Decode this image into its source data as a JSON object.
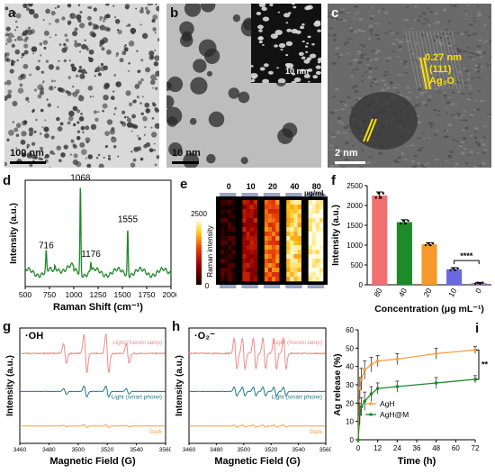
{
  "panels": {
    "a": {
      "label": "a",
      "scale": "100 nm"
    },
    "b": {
      "label": "b",
      "scale": "10 nm",
      "inset_scale": "10 nm"
    },
    "c": {
      "label": "c",
      "scale": "2 nm",
      "annotation_line1": "0.27 nm",
      "annotation_line2": "(111)",
      "annotation_line3": "Ag₂O"
    },
    "d": {
      "label": "d"
    },
    "e": {
      "label": "e"
    },
    "f": {
      "label": "f"
    },
    "g": {
      "label": "g"
    },
    "h": {
      "label": "h"
    },
    "i": {
      "label": "i"
    }
  },
  "colors": {
    "green": "#1f8a2a",
    "pink": "#f08a8a",
    "teal": "#1a7a8a",
    "orange": "#f0a040",
    "bar_pink": "#f07070",
    "bar_green": "#1f8a2a",
    "bar_orange": "#f59a2a",
    "bar_blue": "#6a6ae0",
    "bar_purple": "#9a6ad0",
    "yellow": "#ffe000"
  },
  "chart_data": [
    {
      "id": "d",
      "type": "line",
      "xlabel": "Raman Shift (cm⁻¹)",
      "ylabel": "Intensity (a.u.)",
      "xlim": [
        500,
        2000
      ],
      "xticks": [
        500,
        750,
        1000,
        1250,
        1500,
        1750,
        2000
      ],
      "annotations": [
        {
          "x": 716,
          "text": "716"
        },
        {
          "x": 1068,
          "text": "1068"
        },
        {
          "x": 1176,
          "text": "1176"
        },
        {
          "x": 1555,
          "text": "1555"
        }
      ],
      "series": [
        {
          "peaks": [
            {
              "x": 716,
              "h": 0.22
            },
            {
              "x": 1068,
              "h": 1.0
            },
            {
              "x": 1176,
              "h": 0.12
            },
            {
              "x": 1555,
              "h": 0.52
            }
          ]
        }
      ]
    },
    {
      "id": "e",
      "type": "heatmap",
      "ylabel": "Raman intensity",
      "colorbar": [
        0,
        2500
      ],
      "colorbar_labels": [
        "2500",
        "0"
      ],
      "columns": [
        "0",
        "10",
        "20",
        "40",
        "80"
      ],
      "unit": "μg/mL",
      "levels": [
        0.05,
        0.35,
        0.6,
        0.85,
        0.98
      ]
    },
    {
      "id": "f",
      "type": "bar",
      "xlabel": "Concentration (μg mL⁻¹)",
      "ylabel": "Intensity (a.u.)",
      "categories": [
        "80",
        "40",
        "20",
        "10",
        "0"
      ],
      "values": [
        2250,
        1580,
        1020,
        390,
        40
      ],
      "errors": [
        90,
        60,
        40,
        40,
        20
      ],
      "ylim": [
        0,
        2500
      ],
      "yticks": [
        0,
        500,
        1000,
        1500,
        2000,
        2500
      ],
      "significance": "****"
    },
    {
      "id": "g",
      "type": "line",
      "title": "·OH",
      "xlabel": "Magnetic Field (G)",
      "ylabel": "Intensity (a.u.)",
      "xlim": [
        3460,
        3560
      ],
      "xticks": [
        3460,
        3480,
        3500,
        3520,
        3540,
        3560
      ],
      "series": [
        {
          "name": "Light (Xenon lamp)",
          "offset": 0.78,
          "amp": 0.28
        },
        {
          "name": "Light (smart phone)",
          "offset": 0.45,
          "amp": 0.08
        },
        {
          "name": "Dark",
          "offset": 0.15,
          "amp": 0.02
        }
      ]
    },
    {
      "id": "h",
      "type": "line",
      "title": "·O₂⁻",
      "xlabel": "Magnetic Field (G)",
      "ylabel": "Intensity (a.u.)",
      "xlim": [
        3460,
        3560
      ],
      "xticks": [
        3460,
        3480,
        3500,
        3520,
        3540,
        3560
      ],
      "series": [
        {
          "name": "Light (Xenon lamp)",
          "offset": 0.78,
          "amp": 0.28
        },
        {
          "name": "Light (smart phone)",
          "offset": 0.45,
          "amp": 0.08
        },
        {
          "name": "Dark",
          "offset": 0.15,
          "amp": 0.02
        }
      ]
    },
    {
      "id": "i",
      "type": "line",
      "xlabel": "Time (h)",
      "ylabel": "Ag release (%)",
      "xlim": [
        0,
        72
      ],
      "ylim": [
        0,
        60
      ],
      "xticks": [
        0,
        12,
        24,
        36,
        48,
        60,
        72
      ],
      "yticks": [
        0,
        10,
        20,
        30,
        40,
        50,
        60
      ],
      "significance": "**",
      "series": [
        {
          "name": "AgH",
          "x": [
            0,
            1,
            2,
            4,
            8,
            12,
            24,
            48,
            72
          ],
          "y": [
            0,
            28,
            33,
            38,
            41,
            43,
            44,
            47,
            49
          ],
          "err": [
            0,
            6,
            6,
            5,
            4,
            3,
            3,
            3,
            2
          ]
        },
        {
          "name": "AgH@M",
          "x": [
            0,
            1,
            2,
            4,
            8,
            12,
            24,
            48,
            72
          ],
          "y": [
            0,
            14,
            18,
            21,
            25,
            28,
            29,
            31,
            33
          ],
          "err": [
            0,
            6,
            5,
            5,
            4,
            3,
            3,
            3,
            2
          ]
        }
      ]
    }
  ]
}
